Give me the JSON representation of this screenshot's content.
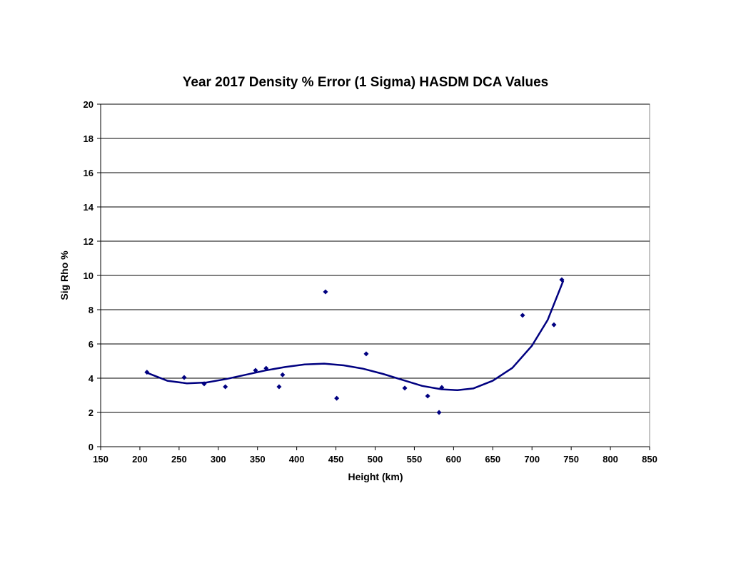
{
  "chart_data": {
    "type": "scatter",
    "title": "Year 2017 Density % Error (1 Sigma) HASDM DCA Values",
    "x_label": "Height (km)",
    "y_label": "Sig Rho %",
    "series": [
      {
        "color": "#000080",
        "x": [
          209,
          256.5,
          282,
          309,
          347.5,
          361,
          377.5,
          382,
          436.7,
          451,
          488.6,
          537.8,
          567,
          581.5,
          585,
          688,
          728,
          738
        ],
        "values": [
          4.35,
          4.04,
          3.67,
          3.5,
          4.46,
          4.58,
          3.5,
          4.2,
          9.04,
          2.83,
          5.42,
          3.42,
          2.96,
          2.0,
          3.46,
          7.67,
          7.12,
          9.75
        ]
      }
    ],
    "trend": {
      "color": "#000080",
      "x": [
        210,
        235,
        260,
        285,
        310,
        335,
        360,
        385,
        410,
        435,
        460,
        485,
        510,
        535,
        560,
        585,
        605,
        625,
        650,
        675,
        700,
        720,
        740
      ],
      "values": [
        4.3,
        3.85,
        3.7,
        3.75,
        3.95,
        4.2,
        4.45,
        4.65,
        4.8,
        4.85,
        4.75,
        4.55,
        4.25,
        3.9,
        3.55,
        3.35,
        3.3,
        3.4,
        3.85,
        4.6,
        5.9,
        7.4,
        9.7
      ]
    },
    "xlim": [
      150,
      850
    ],
    "xticks": [
      150,
      200,
      250,
      300,
      350,
      400,
      450,
      500,
      550,
      600,
      650,
      700,
      750,
      800,
      850
    ],
    "ylim": [
      0,
      20
    ],
    "yticks": [
      0,
      2,
      4,
      6,
      8,
      10,
      12,
      14,
      16,
      18,
      20
    ],
    "grid": true
  }
}
